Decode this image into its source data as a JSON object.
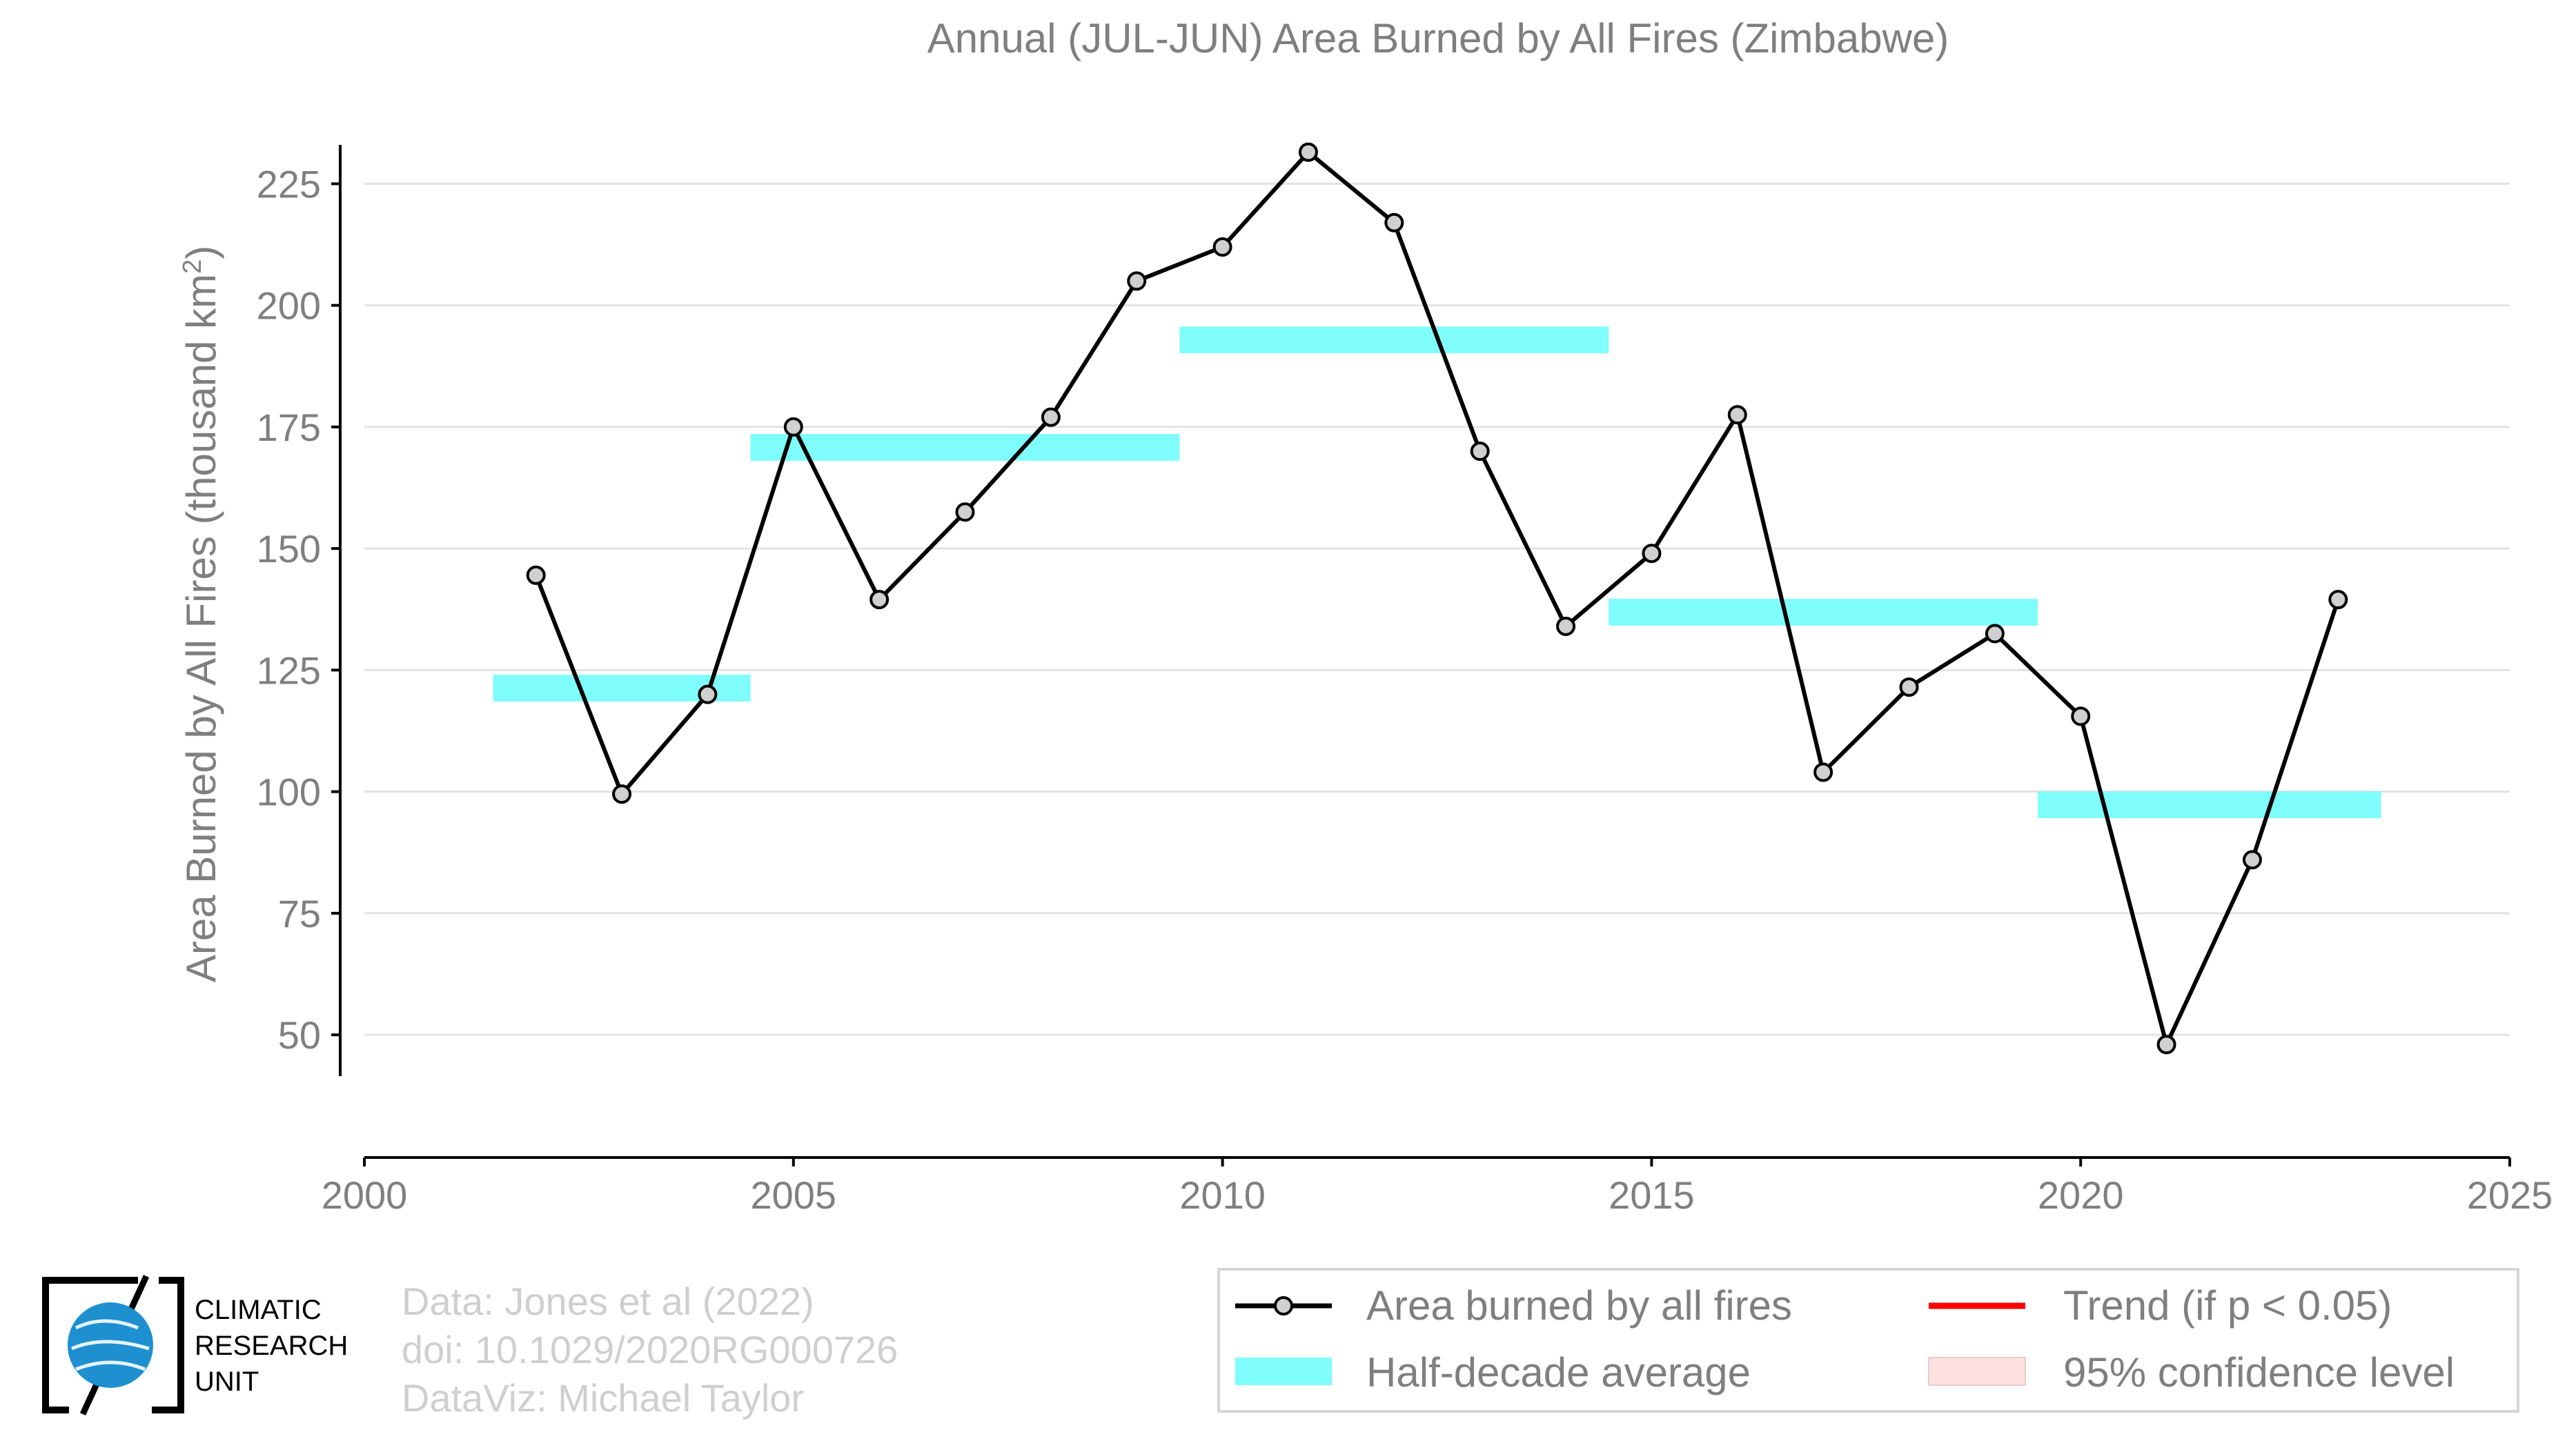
{
  "chart_data": {
    "type": "line",
    "title": "Annual (JUL-JUN) Area Burned by All Fires (Zimbabwe)",
    "xlabel": "",
    "ylabel": "Area Burned by All Fires (thousand km",
    "ylabel_sup": "2",
    "ylabel_end": ")",
    "xlim": [
      2000,
      2025
    ],
    "ylim": [
      33,
      233
    ],
    "x_ticks": [
      2000,
      2005,
      2010,
      2015,
      2020,
      2025
    ],
    "y_ticks": [
      50,
      75,
      100,
      125,
      150,
      175,
      200,
      225
    ],
    "grid": true,
    "legend_position": "bottom-right",
    "series": [
      {
        "name": "Area burned by all fires",
        "color": "#000000",
        "marker_fill": "#d0d0d0",
        "x": [
          2002,
          2003,
          2004,
          2005,
          2006,
          2007,
          2008,
          2009,
          2010,
          2011,
          2012,
          2013,
          2014,
          2015,
          2016,
          2017,
          2018,
          2019,
          2020,
          2021,
          2022,
          2023
        ],
        "y": [
          144.5,
          99.5,
          120,
          175,
          139.5,
          157.5,
          177,
          205,
          212,
          231.5,
          217,
          170,
          134,
          149,
          177.5,
          104,
          121.5,
          132.5,
          115.5,
          48,
          86,
          139.5
        ]
      }
    ],
    "half_decade_averages": [
      {
        "start": 2001.5,
        "end": 2004.5,
        "value": 121.3
      },
      {
        "start": 2004.5,
        "end": 2009.5,
        "value": 170.8
      },
      {
        "start": 2009.5,
        "end": 2014.5,
        "value": 192.9
      },
      {
        "start": 2014.5,
        "end": 2019.5,
        "value": 136.9
      },
      {
        "start": 2019.5,
        "end": 2023.5,
        "value": 97.3
      }
    ],
    "half_decade_color": "#7ffcfc",
    "half_decade_thickness": 5.5
  },
  "legend": {
    "items": [
      {
        "label": "Area burned by all fires",
        "kind": "line-marker",
        "color": "#000000"
      },
      {
        "label": "Half-decade average",
        "kind": "band",
        "color": "#7ffcfc"
      },
      {
        "label": "Trend (if p < 0.05)",
        "kind": "line",
        "color": "#ff0000"
      },
      {
        "label": "95% confidence level",
        "kind": "band",
        "color": "#ffe0e0"
      }
    ]
  },
  "credits": {
    "line1": "Data: Jones et al (2022)",
    "line2": "doi: 10.1029/2020RG000726",
    "line3": "DataViz: Michael Taylor"
  },
  "logo": {
    "line1": "CLIMATIC",
    "line2": "RESEARCH",
    "line3": "UNIT"
  }
}
